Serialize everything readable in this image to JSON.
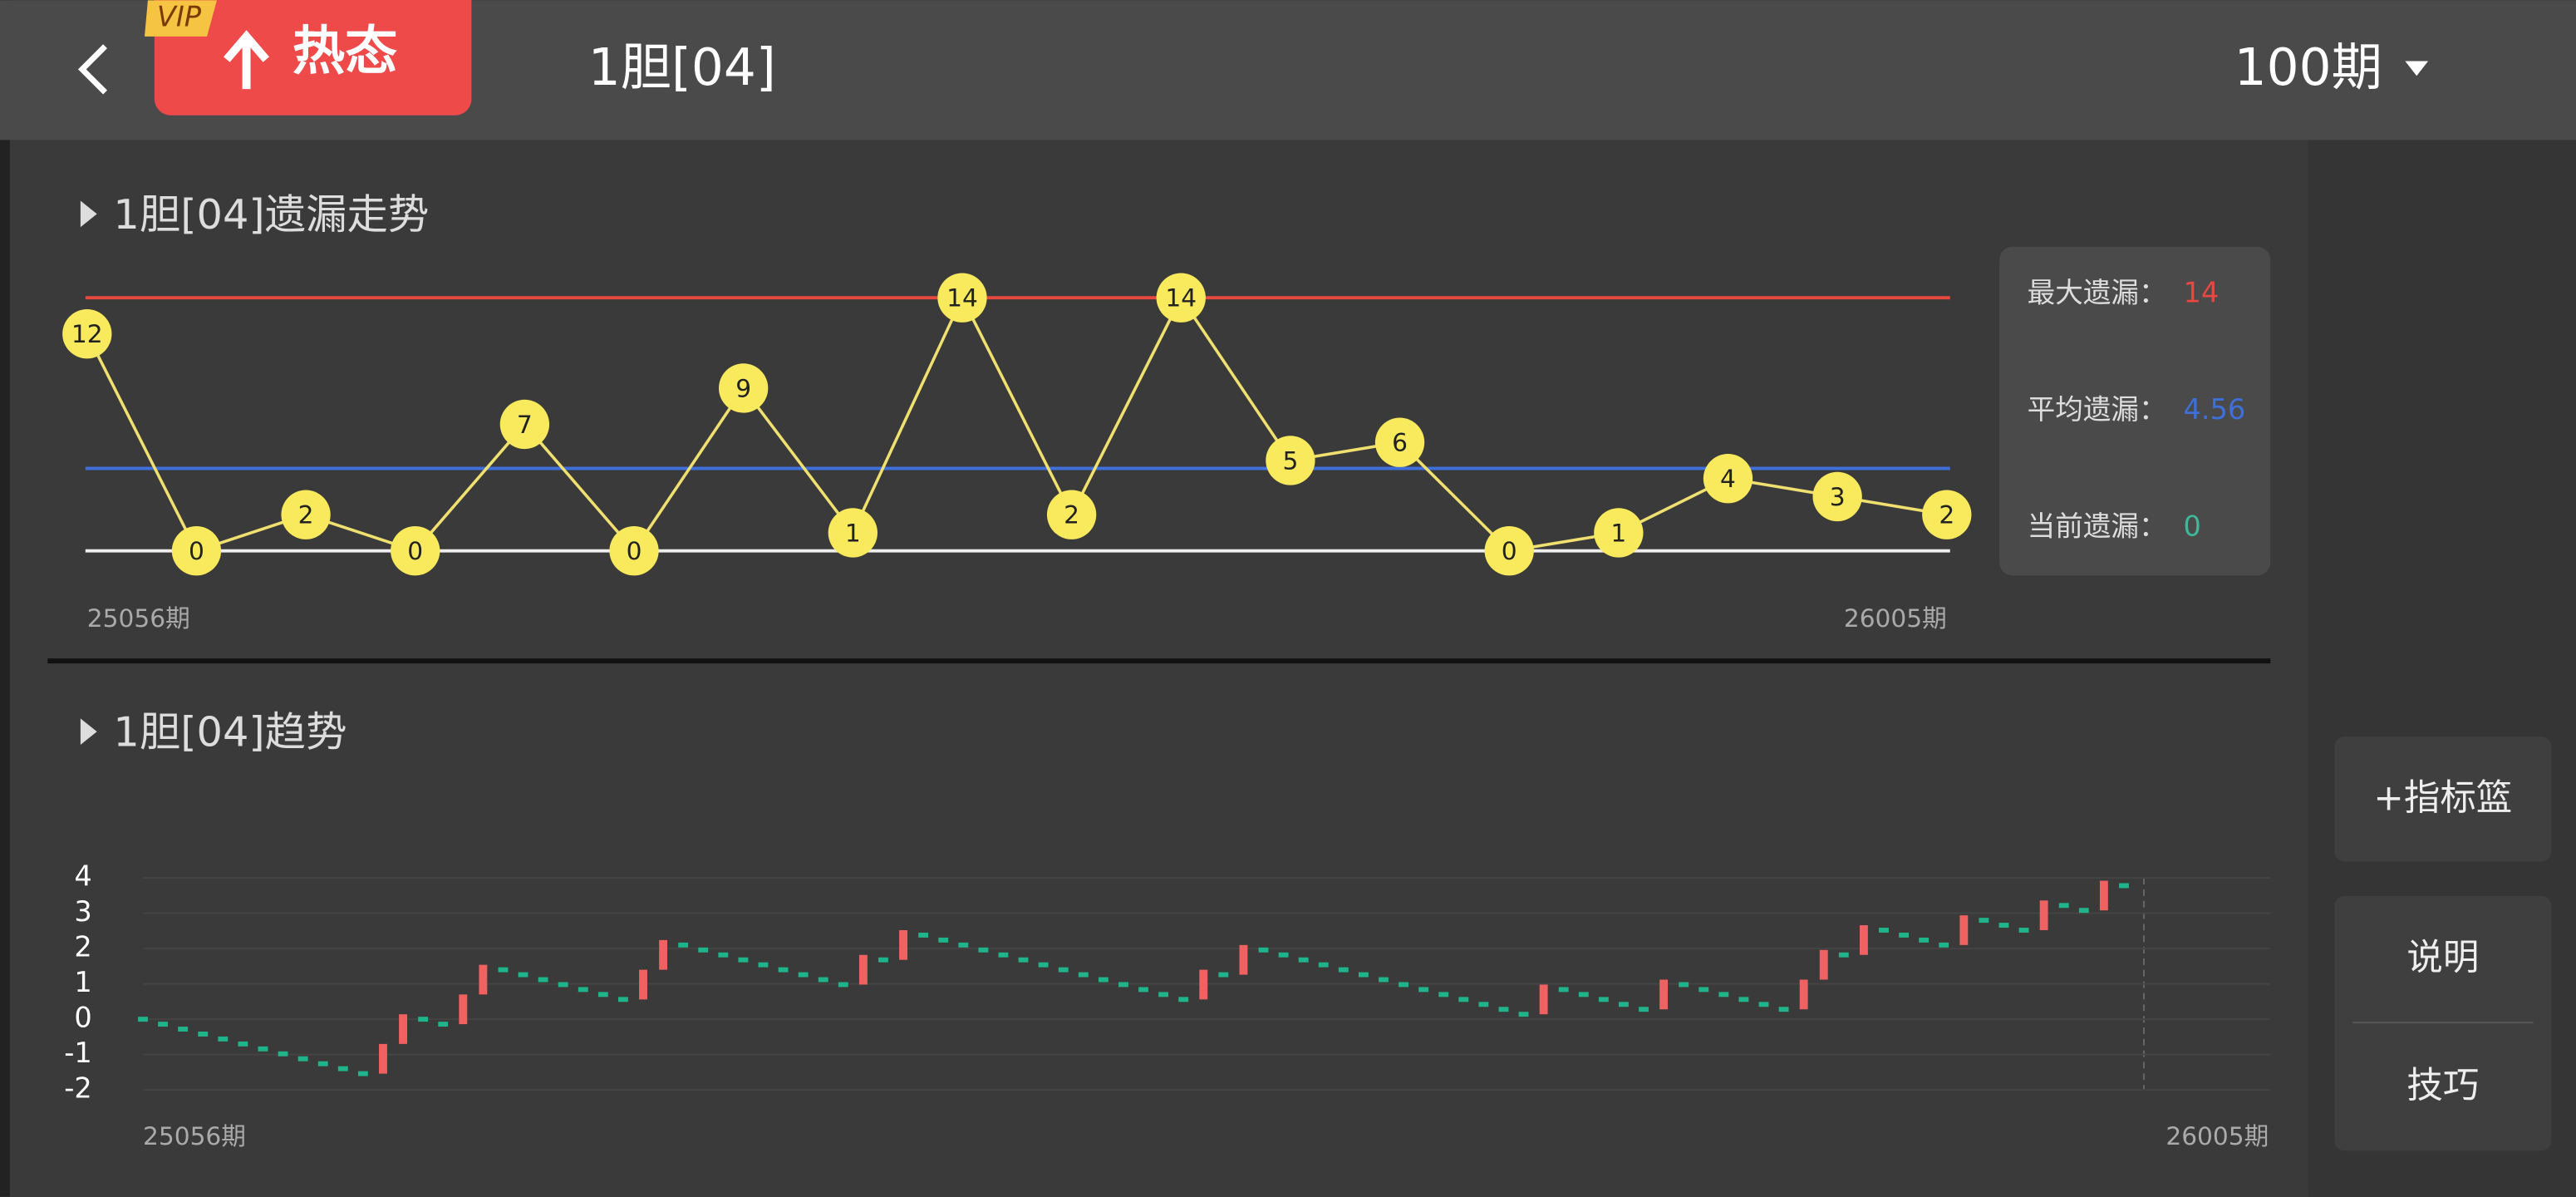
{
  "header": {
    "badge": "VIP",
    "hot_button": "热态",
    "title": "1胆[04]",
    "period_select": "100期"
  },
  "omission": {
    "title": "1胆[04]遗漏走势",
    "type": "line",
    "values": [
      12,
      0,
      2,
      0,
      7,
      0,
      9,
      1,
      14,
      2,
      14,
      5,
      6,
      0,
      1,
      4,
      3,
      2
    ],
    "ylim": [
      0,
      14
    ],
    "x_start": "25056期",
    "x_end": "26005期",
    "stats": [
      {
        "label": "最大遗漏：",
        "value": 14,
        "color": "#e8483f"
      },
      {
        "label": "平均遗漏：",
        "value": 4.56,
        "color": "#3f6fd8"
      },
      {
        "label": "当前遗漏：",
        "value": 0,
        "color": "#3fb89a"
      }
    ],
    "point_color": "#f8ea5c",
    "line_color": "#efe070"
  },
  "trend": {
    "title": "1胆[04]趋势",
    "type": "step",
    "values": [
      0,
      -0.14,
      -0.28,
      -0.42,
      -0.56,
      -0.7,
      -0.84,
      -0.98,
      -1.12,
      -1.26,
      -1.4,
      -1.54,
      -0.7,
      0.14,
      0,
      -0.14,
      0.7,
      1.54,
      1.4,
      1.26,
      1.12,
      0.98,
      0.84,
      0.7,
      0.56,
      1.4,
      2.24,
      2.1,
      1.96,
      1.82,
      1.68,
      1.54,
      1.4,
      1.26,
      1.12,
      0.98,
      1.82,
      1.68,
      2.52,
      2.38,
      2.24,
      2.1,
      1.96,
      1.82,
      1.68,
      1.54,
      1.4,
      1.26,
      1.12,
      0.98,
      0.84,
      0.7,
      0.56,
      1.4,
      1.26,
      2.1,
      1.96,
      1.82,
      1.68,
      1.54,
      1.4,
      1.26,
      1.12,
      0.98,
      0.84,
      0.7,
      0.56,
      0.42,
      0.28,
      0.14,
      0.98,
      0.84,
      0.7,
      0.56,
      0.42,
      0.28,
      1.12,
      0.98,
      0.84,
      0.7,
      0.56,
      0.42,
      0.28,
      1.12,
      1.96,
      1.82,
      2.66,
      2.52,
      2.38,
      2.24,
      2.1,
      2.94,
      2.8,
      2.66,
      2.52,
      3.36,
      3.22,
      3.08,
      3.92,
      3.78
    ],
    "ylim": [
      -2,
      4
    ],
    "yticks": [
      4,
      3,
      2,
      1,
      0,
      -1,
      -2
    ],
    "grid": true,
    "x_start": "25056期",
    "x_end": "26005期",
    "up_color": "#f06262",
    "down_color": "#1fb48a"
  },
  "side_buttons": [
    "+指标篮",
    "说明",
    "技巧"
  ]
}
